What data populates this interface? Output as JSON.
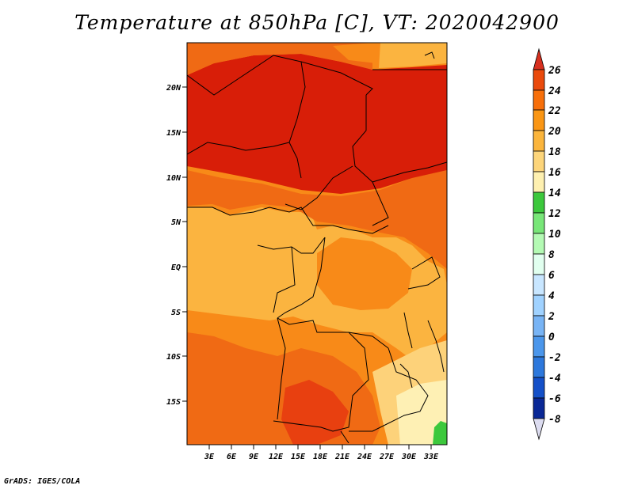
{
  "title": "Temperature at 850hPa [C], VT: 2020042900",
  "credit": "GrADS: IGES/COLA",
  "lat_labels": [
    "20N",
    "15N",
    "10N",
    "5N",
    "EQ",
    "5S",
    "10S",
    "15S"
  ],
  "lon_labels": [
    "3E",
    "6E",
    "9E",
    "12E",
    "15E",
    "18E",
    "21E",
    "24E",
    "27E",
    "30E",
    "33E"
  ],
  "colorbar": {
    "labels": [
      "26",
      "24",
      "22",
      "20",
      "18",
      "16",
      "14",
      "12",
      "10",
      "8",
      "6",
      "4",
      "2",
      "0",
      "-2",
      "-4",
      "-6",
      "-8"
    ],
    "colors": {
      "c26": "#d7301f",
      "c24": "#ea4a0c",
      "c22": "#f76f0a",
      "c20": "#fa9614",
      "c18": "#fbb53c",
      "c16": "#fdd57a",
      "c14": "#fef0b0",
      "c12": "#3cc83c",
      "c10": "#78e678",
      "c8": "#b4fab4",
      "c6": "#e1ffef",
      "c4": "#c8e6ff",
      "c2": "#a0d2ff",
      "c0": "#78b4f5",
      "cm2": "#4b96eb",
      "cm4": "#2d78dc",
      "cm6": "#1450c8",
      "cm8": "#0a2896",
      "cm10": "#00006e",
      "lowest": "#dcdcf0"
    }
  },
  "map_colors": {
    "hot": "#d81e08",
    "hot2": "#e84010",
    "warm": "#f06a14",
    "mid": "#f88a18",
    "mild": "#fbb440",
    "cool": "#fdd27a",
    "pale": "#fef0b4",
    "green": "#3cc83c",
    "border": "#000000"
  }
}
